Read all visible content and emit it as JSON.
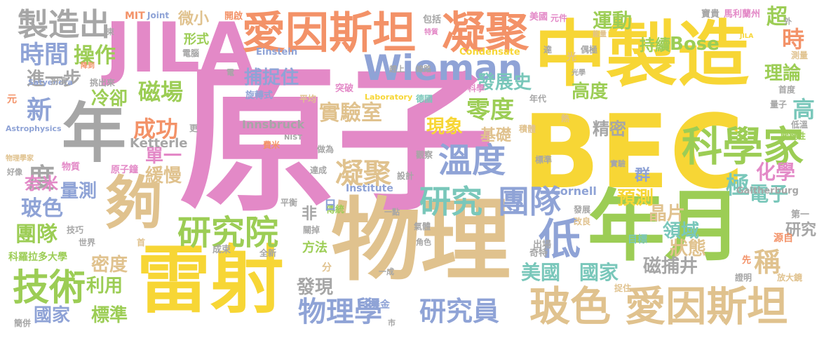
{
  "words": [
    {
      "text": "原子",
      "color": "#e389c7"
    },
    {
      "text": "BEC",
      "color": "#f7d635"
    },
    {
      "text": "物理",
      "color": "#e0c28e"
    },
    {
      "text": "中製造",
      "color": "#f7d635"
    },
    {
      "text": "雷射",
      "color": "#f7d635"
    },
    {
      "text": "年月",
      "color": "#9ccd55"
    },
    {
      "text": "JILA",
      "color": "#e389c7"
    },
    {
      "text": "年",
      "color": "#a6a6a6"
    },
    {
      "text": "夠",
      "color": "#e0c28e"
    },
    {
      "text": "愛因斯坦",
      "color": "#f39268"
    },
    {
      "text": "凝聚",
      "color": "#f39268"
    },
    {
      "text": "Wieman",
      "color": "#8fa3d6"
    },
    {
      "text": "科學家",
      "color": "#9ccd55"
    },
    {
      "text": "玻色 愛因斯坦",
      "color": "#e0c28e"
    },
    {
      "text": "研究院",
      "color": "#9ccd55"
    },
    {
      "text": "技術",
      "color": "#9ccd55"
    },
    {
      "text": "溫度",
      "color": "#8fa3d6"
    },
    {
      "text": "研究",
      "color": "#79c7ba"
    },
    {
      "text": "團隊",
      "color": "#8fa3d6"
    },
    {
      "text": "物理學",
      "color": "#8fa3d6"
    },
    {
      "text": "研究員",
      "color": "#8fa3d6"
    },
    {
      "text": "製造出",
      "color": "#a6a6a6"
    },
    {
      "text": "時間",
      "color": "#8fa3d6"
    },
    {
      "text": "操作",
      "color": "#9ccd55"
    },
    {
      "text": "微小",
      "color": "#e0c28e"
    },
    {
      "text": "形式",
      "color": "#9ccd55"
    },
    {
      "text": "運動",
      "color": "#9ccd55"
    },
    {
      "text": "持續",
      "color": "#9ccd55"
    },
    {
      "text": "Bose",
      "color": "#9ccd55"
    },
    {
      "text": "超",
      "color": "#9ccd55"
    },
    {
      "text": "時",
      "color": "#f39268"
    },
    {
      "text": "捕捉住",
      "color": "#8fa3d6"
    },
    {
      "text": "發展史",
      "color": "#79c7ba"
    },
    {
      "text": "理論",
      "color": "#9ccd55"
    },
    {
      "text": "磁場",
      "color": "#9ccd55"
    },
    {
      "text": "實驗室",
      "color": "#e0c28e"
    },
    {
      "text": "零度",
      "color": "#9ccd55"
    },
    {
      "text": "高度",
      "color": "#9ccd55"
    },
    {
      "text": "高",
      "color": "#79c7ba"
    },
    {
      "text": "成功",
      "color": "#f39268"
    },
    {
      "text": "現象",
      "color": "#f7d635"
    },
    {
      "text": "基礎",
      "color": "#e0c28e"
    },
    {
      "text": "精密",
      "color": "#a6a6a6"
    },
    {
      "text": "冷卻",
      "color": "#9ccd55"
    },
    {
      "text": "新",
      "color": "#8fa3d6"
    },
    {
      "text": "進一步",
      "color": "#a6a6a6"
    },
    {
      "text": "單一",
      "color": "#e389c7"
    },
    {
      "text": "凝聚",
      "color": "#e0c28e"
    },
    {
      "text": "緩慢",
      "color": "#e0c28e"
    },
    {
      "text": "度",
      "color": "#a6a6a6"
    },
    {
      "text": "量測",
      "color": "#8fa3d6"
    },
    {
      "text": "玻色",
      "color": "#8fa3d6"
    },
    {
      "text": "低",
      "color": "#8fa3d6"
    },
    {
      "text": "極",
      "color": "#79c7ba"
    },
    {
      "text": "化學",
      "color": "#e389c7"
    },
    {
      "text": "電子",
      "color": "#79c7ba"
    },
    {
      "text": "預測",
      "color": "#f7d635"
    },
    {
      "text": "晶片",
      "color": "#e0c28e"
    },
    {
      "text": "領域",
      "color": "#79c7ba"
    },
    {
      "text": "狀態",
      "color": "#e0c28e"
    },
    {
      "text": "磁捕井",
      "color": "#a6a6a6"
    },
    {
      "text": "美國",
      "color": "#79c7ba"
    },
    {
      "text": "國家",
      "color": "#79c7ba"
    },
    {
      "text": "稱",
      "color": "#e0c28e"
    },
    {
      "text": "研究",
      "color": "#a6a6a6"
    },
    {
      "text": "團隊",
      "color": "#9ccd55"
    },
    {
      "text": "密度",
      "color": "#e0c28e"
    },
    {
      "text": "利用",
      "color": "#9ccd55"
    },
    {
      "text": "國家",
      "color": "#8fa3d6"
    },
    {
      "text": "標準",
      "color": "#9ccd55"
    },
    {
      "text": "發現",
      "color": "#a6a6a6"
    },
    {
      "text": "方法",
      "color": "#9ccd55"
    },
    {
      "text": "奈米",
      "color": "#e389c7"
    },
    {
      "text": "Ketterle",
      "color": "#a6a6a6"
    },
    {
      "text": "Innsbruck",
      "color": "#a6a6a6"
    },
    {
      "text": "Cornell",
      "color": "#8fa3d6"
    },
    {
      "text": "群",
      "color": "#8fa3d6"
    },
    {
      "text": "MIT",
      "color": "#f39268"
    },
    {
      "text": "Joint",
      "color": "#8fa3d6"
    },
    {
      "text": "開啟",
      "color": "#f39268"
    },
    {
      "text": "包括",
      "color": "#a6a6a6"
    },
    {
      "text": "美國",
      "color": "#e389c7"
    },
    {
      "text": "元件",
      "color": "#e389c7"
    },
    {
      "text": "寶貴",
      "color": "#a6a6a6"
    },
    {
      "text": "馬利蘭州",
      "color": "#e389c7"
    },
    {
      "text": "特質",
      "color": "#e389c7"
    },
    {
      "text": "Einstein",
      "color": "#8fa3d6"
    },
    {
      "text": "Condensate",
      "color": "#f7d635"
    },
    {
      "text": "Laboratory",
      "color": "#f7d635"
    },
    {
      "text": "Institute",
      "color": "#8fa3d6"
    },
    {
      "text": "Gaitherburg",
      "color": "#a6a6a6"
    },
    {
      "text": "Satyendra",
      "color": "#8fa3d6"
    },
    {
      "text": "Astrophysics",
      "color": "#8fa3d6"
    },
    {
      "text": "NIST",
      "color": "#a6a6a6"
    },
    {
      "text": "JILA",
      "color": "#f7d635"
    },
    {
      "text": "科羅拉多大學",
      "color": "#9ccd55"
    },
    {
      "text": "物理學家",
      "color": "#e0c28e"
    },
    {
      "text": "原子鐘",
      "color": "#e389c7"
    },
    {
      "text": "物質",
      "color": "#e389c7"
    },
    {
      "text": "旋轉式",
      "color": "#8fa3d6"
    },
    {
      "text": "平均",
      "color": "#e0c28e"
    },
    {
      "text": "突破",
      "color": "#e389c7"
    },
    {
      "text": "德國",
      "color": "#79c7ba"
    },
    {
      "text": "科學",
      "color": "#e389c7"
    },
    {
      "text": "年代",
      "color": "#a6a6a6"
    },
    {
      "text": "偶極",
      "color": "#a6a6a6"
    },
    {
      "text": "測量",
      "color": "#e0c28e"
    },
    {
      "text": "首度",
      "color": "#a6a6a6"
    },
    {
      "text": "低溫",
      "color": "#a6a6a6"
    },
    {
      "text": "關鍵性",
      "color": "#9ccd55"
    },
    {
      "text": "量子",
      "color": "#a6a6a6"
    },
    {
      "text": "實驗",
      "color": "#a6a6a6"
    },
    {
      "text": "標準",
      "color": "#a6a6a6"
    },
    {
      "text": "積體",
      "color": "#e0c28e"
    },
    {
      "text": "觀察",
      "color": "#a6a6a6"
    },
    {
      "text": "設計",
      "color": "#a6a6a6"
    },
    {
      "text": "達成",
      "color": "#a6a6a6"
    },
    {
      "text": "做為",
      "color": "#a6a6a6"
    },
    {
      "text": "費米",
      "color": "#f39268"
    },
    {
      "text": "平衡",
      "color": "#a6a6a6"
    },
    {
      "text": "一點",
      "color": "#a6a6a6"
    },
    {
      "text": "傳統",
      "color": "#9ccd55"
    },
    {
      "text": "日",
      "color": "#8fa3d6"
    },
    {
      "text": "非",
      "color": "#a6a6a6"
    },
    {
      "text": "分",
      "color": "#e0c28e"
    },
    {
      "text": "一成",
      "color": "#a6a6a6"
    },
    {
      "text": "美金",
      "color": "#8fa3d6"
    },
    {
      "text": "市",
      "color": "#a6a6a6"
    },
    {
      "text": "出場",
      "color": "#a6a6a6"
    },
    {
      "text": "目標",
      "color": "#79c7ba"
    },
    {
      "text": "奇特",
      "color": "#a6a6a6"
    },
    {
      "text": "源自",
      "color": "#f39268"
    },
    {
      "text": "先",
      "color": "#f39268"
    },
    {
      "text": "證明",
      "color": "#a6a6a6"
    },
    {
      "text": "放大鏡",
      "color": "#e0c28e"
    },
    {
      "text": "第一",
      "color": "#a6a6a6"
    },
    {
      "text": "捉住",
      "color": "#e0c28e"
    },
    {
      "text": "發展",
      "color": "#a6a6a6"
    },
    {
      "text": "改良",
      "color": "#e0c28e"
    },
    {
      "text": "全新",
      "color": "#a6a6a6"
    },
    {
      "text": "成束",
      "color": "#a6a6a6"
    },
    {
      "text": "關掉",
      "color": "#a6a6a6"
    },
    {
      "text": "氣體",
      "color": "#a6a6a6"
    },
    {
      "text": "角色",
      "color": "#a6a6a6"
    },
    {
      "text": "世界",
      "color": "#a6a6a6"
    },
    {
      "text": "技巧",
      "color": "#a6a6a6"
    },
    {
      "text": "首",
      "color": "#e0c28e"
    },
    {
      "text": "簡併",
      "color": "#a6a6a6"
    },
    {
      "text": "好像",
      "color": "#a6a6a6"
    },
    {
      "text": "元",
      "color": "#f39268"
    },
    {
      "text": "扮演",
      "color": "#a6a6a6"
    },
    {
      "text": "挑出來",
      "color": "#a6a6a6"
    },
    {
      "text": "趕上",
      "color": "#a6a6a6"
    },
    {
      "text": "線路",
      "color": "#a6a6a6"
    },
    {
      "text": "電腦",
      "color": "#a6a6a6"
    },
    {
      "text": "電",
      "color": "#a6a6a6"
    },
    {
      "text": "更",
      "color": "#a6a6a6"
    },
    {
      "text": "降到",
      "color": "#f39268"
    },
    {
      "text": "光",
      "color": "#e0c28e"
    },
    {
      "text": "達",
      "color": "#a6a6a6"
    },
    {
      "text": "熱",
      "color": "#e0c28e"
    },
    {
      "text": "光學",
      "color": "#a6a6a6"
    },
    {
      "text": "束",
      "color": "#a6a6a6"
    },
    {
      "text": "外",
      "color": "#a6a6a6"
    },
    {
      "text": "能量",
      "color": "#e0c28e"
    }
  ]
}
